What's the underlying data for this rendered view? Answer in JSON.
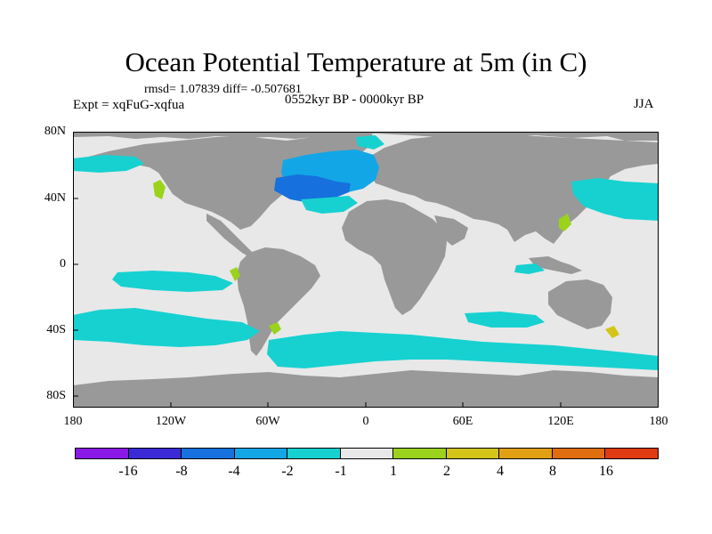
{
  "title": "Ocean Potential Temperature at 5m (in C)",
  "stats": "rmsd= 1.07839 diff= -0.507681",
  "experiment": "Expt = xqFuG-xqfua",
  "period": "0552kyr BP - 0000kyr BP",
  "season": "JJA",
  "y_axis_labels": [
    "80N",
    "40N",
    "0",
    "40S",
    "80S"
  ],
  "x_axis_labels": [
    "180",
    "120W",
    "60W",
    "0",
    "60E",
    "120E",
    "180"
  ],
  "colorbar": {
    "labels": [
      "-16",
      "-8",
      "-4",
      "-2",
      "-1",
      "1",
      "2",
      "4",
      "8",
      "16"
    ],
    "colors": [
      "#8a19e6",
      "#3a2bd6",
      "#1670dd",
      "#12a6e6",
      "#17d1d1",
      "#e8e8e8",
      "#9ad21c",
      "#d4c418",
      "#e0a012",
      "#e06d10",
      "#e03a12"
    ]
  },
  "map_colors": {
    "land": "#999999",
    "ocean_neutral": "#e8e8e8",
    "minus2_to_minus1": "#17d1d1",
    "minus4_to_minus2": "#12a6e6",
    "minus8_to_minus4": "#1670dd",
    "plus1_to_plus2": "#9ad21c",
    "plus2_to_plus4": "#d4c418"
  }
}
